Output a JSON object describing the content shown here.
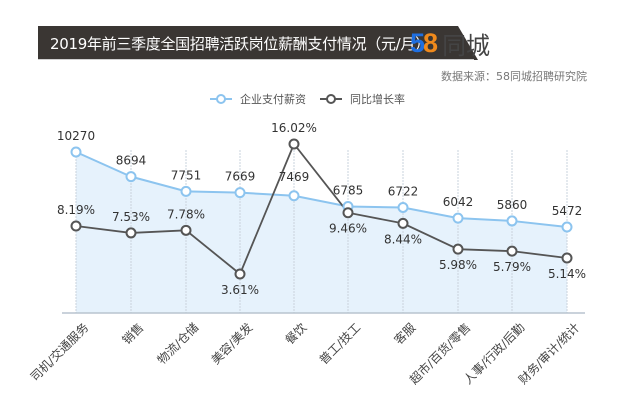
{
  "header": {
    "title": "2019年前三季度全国招聘活跃岗位薪酬支付情况（元/月）",
    "logo_digits_1": "5",
    "logo_digits_2": "8",
    "logo_text": "同城",
    "source": "数据来源：58同城招聘研究院"
  },
  "legend": [
    {
      "label": "企业支付薪资",
      "color": "#8cc4ef",
      "icon": "circle-line-marker-icon"
    },
    {
      "label": "同比增长率",
      "color": "#555555",
      "icon": "circle-line-marker-icon"
    }
  ],
  "colors": {
    "title_bg": "#3a3633",
    "salary_line": "#8cc4ef",
    "salary_fill": "#e6f2fc",
    "growth_line": "#555555"
  },
  "chart_data": {
    "type": "line",
    "title": "2019年前三季度全国招聘活跃岗位薪酬支付情况（元/月）",
    "xlabel": "",
    "ylabel": "",
    "categories": [
      "司机/交通服务",
      "销售",
      "物流/仓储",
      "美容/美发",
      "餐饮",
      "普工/技工",
      "客服",
      "超市/百货/零售",
      "人事/行政/后勤",
      "财务/审计/统计"
    ],
    "series": [
      {
        "name": "企业支付薪资",
        "unit": "元/月",
        "values": [
          10270,
          8694,
          7751,
          7669,
          7469,
          6785,
          6722,
          6042,
          5860,
          5472
        ],
        "labels": [
          "10270",
          "8694",
          "7751",
          "7669",
          "7469",
          "6785",
          "6722",
          "6042",
          "5860",
          "5472"
        ]
      },
      {
        "name": "同比增长率",
        "unit": "%",
        "values": [
          8.19,
          7.53,
          7.78,
          3.61,
          16.02,
          9.46,
          8.44,
          5.98,
          5.79,
          5.14
        ],
        "labels": [
          "8.19%",
          "7.53%",
          "7.78%",
          "3.61%",
          "16.02%",
          "9.46%",
          "8.44%",
          "5.98%",
          "5.79%",
          "5.14%"
        ]
      }
    ],
    "legend_position": "top",
    "grid": "vertical-dashed"
  }
}
